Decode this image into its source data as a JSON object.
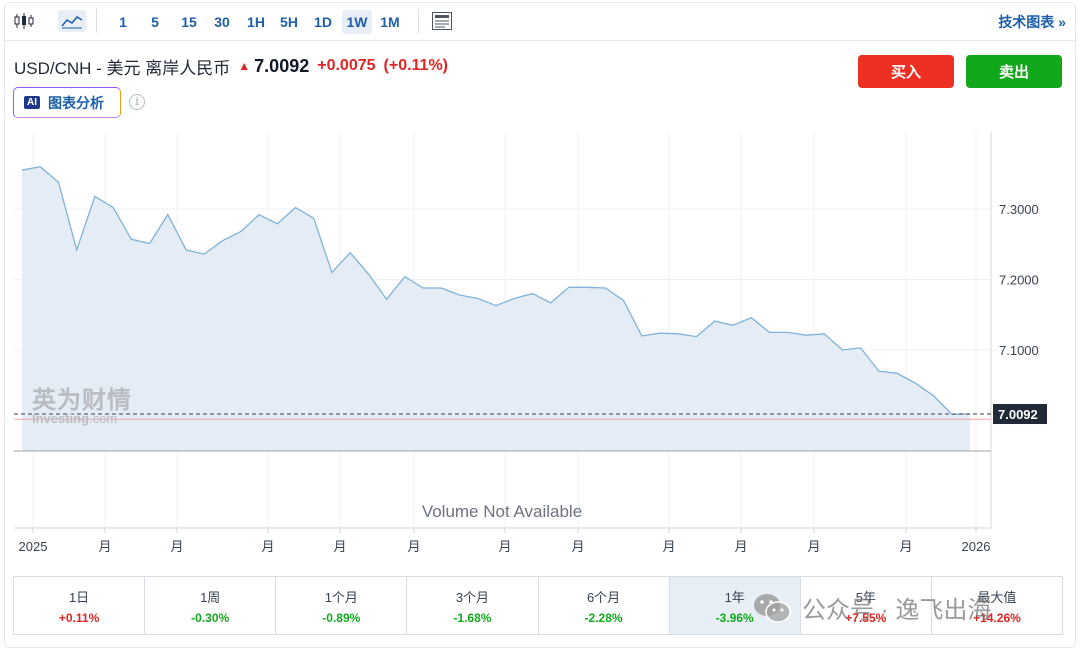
{
  "toolbar": {
    "intervals": [
      "1",
      "5",
      "15",
      "30",
      "1H",
      "5H",
      "1D",
      "1W",
      "1M"
    ],
    "selected_interval": "1W",
    "technical_chart_label": "技术图表 »"
  },
  "header": {
    "symbol": "USD/CNH - 美元 离岸人民币",
    "price": "7.0092",
    "change": "+0.0075",
    "change_pct": "(+0.11%)",
    "buy_label": "买入",
    "sell_label": "卖出",
    "ai_badge": "AI",
    "ai_label": "图表分析",
    "info_glyph": "i"
  },
  "chart": {
    "volume_notice": "Volume Not Available",
    "last_price_tag": "7.0092",
    "watermark_cn": "英为财情",
    "watermark_en": "Investing",
    "watermark_en_suffix": ".com"
  },
  "chart_data": {
    "type": "area",
    "title": "",
    "xlabel": "",
    "ylabel": "",
    "y_ticks": [
      7.3,
      7.2,
      7.1
    ],
    "y_tick_labels": [
      "7.3000",
      "7.2000",
      "7.1000"
    ],
    "ylim": [
      7.005,
      7.37
    ],
    "x_tick_labels": [
      "2025",
      "月",
      "月",
      "月",
      "月",
      "月",
      "月",
      "月",
      "月",
      "月",
      "月",
      "月",
      "2026"
    ],
    "series": [
      {
        "values": [
          7.355,
          7.36,
          7.338,
          7.242,
          7.318,
          7.302,
          7.257,
          7.251,
          7.292,
          7.242,
          7.236,
          7.255,
          7.268,
          7.292,
          7.279,
          7.302,
          7.287,
          7.21,
          7.238,
          7.208,
          7.172,
          7.204,
          7.188,
          7.188,
          7.178,
          7.173,
          7.163,
          7.173,
          7.18,
          7.167,
          7.189,
          7.189,
          7.188,
          7.17,
          7.12,
          7.124,
          7.123,
          7.119,
          7.141,
          7.135,
          7.146,
          7.125,
          7.125,
          7.121,
          7.123,
          7.1,
          7.103,
          7.07,
          7.067,
          7.053,
          7.035,
          7.009,
          7.0092
        ]
      }
    ],
    "last_value": 7.0092,
    "grid": true,
    "volume": "Volume Not Available"
  },
  "performance": [
    {
      "label": "1日",
      "value": "+0.11%",
      "dir": "pos"
    },
    {
      "label": "1周",
      "value": "-0.30%",
      "dir": "neg"
    },
    {
      "label": "1个月",
      "value": "-0.89%",
      "dir": "neg"
    },
    {
      "label": "3个月",
      "value": "-1.68%",
      "dir": "neg"
    },
    {
      "label": "6个月",
      "value": "-2.28%",
      "dir": "neg"
    },
    {
      "label": "1年",
      "value": "-3.96%",
      "dir": "neg"
    },
    {
      "label": "5年",
      "value": "+7.55%",
      "dir": "pos"
    },
    {
      "label": "最大值",
      "value": "+14.26%",
      "dir": "pos"
    }
  ],
  "selected_period": "1年",
  "overlay": {
    "account_label": "公众号 · 逸飞出海"
  },
  "colors": {
    "accent": "#1e5fa8",
    "buy": "#ee3024",
    "sell": "#12a81c",
    "line": "#7fb3d9",
    "area": "#e4ecf5"
  }
}
